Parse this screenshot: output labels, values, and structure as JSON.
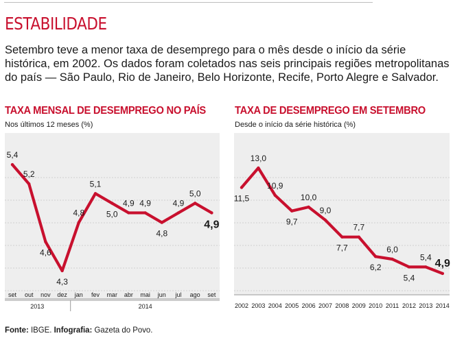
{
  "kicker": "ESTABILIDADE",
  "lede": "Setembro teve a menor taxa de desemprego para o mês desde o início da série histórica, em 2002. Os dados foram coletados nas seis principais regiões metropolitanas do país — São Paulo, Rio de Janeiro, Belo Horizonte, Recife, Porto Alegre e Salvador.",
  "footer": {
    "source_label": "Fonte:",
    "source_value": "IBGE.",
    "credit_label": "Infografia:",
    "credit_value": "Gazeta do Povo."
  },
  "colors": {
    "accent": "#c8102e",
    "panel_bg": "#eeeeee",
    "grid": "#d0d0d0"
  },
  "chart_data": [
    {
      "type": "line",
      "title": "TAXA MENSAL DE DESEMPREGO NO PAÍS",
      "subtitle": "Nos últimos 12 meses (%)",
      "categories": [
        "set",
        "out",
        "nov",
        "dez",
        "jan",
        "fev",
        "mar",
        "abr",
        "mai",
        "jun",
        "jul",
        "ago",
        "set"
      ],
      "year_groups": [
        {
          "label": "2013",
          "from": 0,
          "to": 3
        },
        {
          "label": "2014",
          "from": 4,
          "to": 12
        }
      ],
      "values": [
        5.4,
        5.2,
        4.6,
        4.3,
        4.8,
        5.1,
        5.0,
        4.9,
        4.9,
        4.8,
        4.9,
        5.0,
        4.9
      ],
      "value_labels": [
        "5,4",
        "5,2",
        "4,6",
        "4,3",
        "4,8",
        "5,1",
        "5,0",
        "4,9",
        "4,9",
        "4,8",
        "4,9",
        "5,0",
        "4,9"
      ],
      "label_pos": [
        "above",
        "above",
        "below",
        "below",
        "above",
        "above",
        "below",
        "above",
        "above",
        "below",
        "above",
        "above",
        "below"
      ],
      "ylim": [
        4.2,
        5.5
      ],
      "xlabel": "",
      "ylabel": ""
    },
    {
      "type": "line",
      "title": "TAXA DE DESEMPREGO EM SETEMBRO",
      "subtitle": "Desde o início da série histórica (%)",
      "categories": [
        "2002",
        "2003",
        "2004",
        "2005",
        "2006",
        "2007",
        "2008",
        "2009",
        "2010",
        "2011",
        "2012",
        "2013",
        "2014"
      ],
      "values": [
        11.5,
        13.0,
        10.9,
        9.7,
        10.0,
        9.0,
        7.7,
        7.7,
        6.2,
        6.0,
        5.4,
        5.4,
        4.9
      ],
      "value_labels": [
        "11,5",
        "13,0",
        "10,9",
        "9,7",
        "10,0",
        "9,0",
        "7,7",
        "7,7",
        "6,2",
        "6,0",
        "5,4",
        "5,4",
        "4,9"
      ],
      "label_pos": [
        "below",
        "above",
        "above",
        "below",
        "above",
        "above",
        "below",
        "above",
        "below",
        "above",
        "below",
        "above",
        "above"
      ],
      "ylim": [
        4.0,
        14.0
      ],
      "xlabel": "",
      "ylabel": ""
    }
  ]
}
